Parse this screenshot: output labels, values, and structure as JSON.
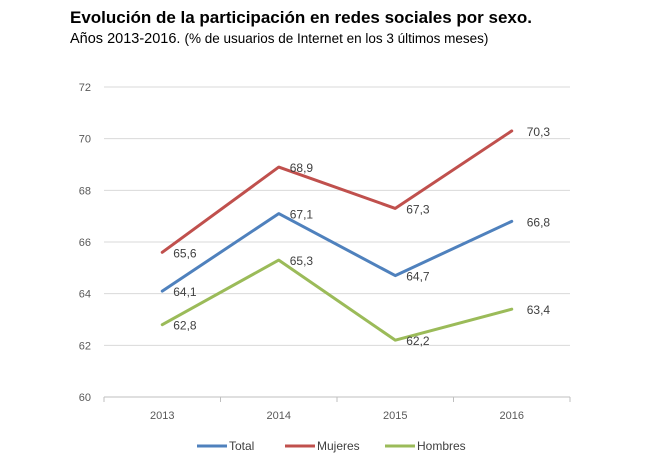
{
  "header": {
    "title": "Evolución de la participación en redes sociales por sexo.",
    "subtitle_main": "Años 2013-2016.",
    "subtitle_note": "(% de usuarios de Internet en los 3 últimos meses)"
  },
  "chart_data": {
    "type": "line",
    "title": "Evolución de la participación en redes sociales por sexo.",
    "subtitle": "Años 2013-2016. (% de usuarios de Internet en los 3 últimos meses)",
    "categories": [
      "2013",
      "2014",
      "2015",
      "2016"
    ],
    "series": [
      {
        "name": "Total",
        "values": [
          64.1,
          67.1,
          64.7,
          66.8
        ],
        "color": "#4f81bd"
      },
      {
        "name": "Mujeres",
        "values": [
          65.6,
          68.9,
          67.3,
          70.3
        ],
        "color": "#c0504d"
      },
      {
        "name": "Hombres",
        "values": [
          62.8,
          65.3,
          62.2,
          63.4
        ],
        "color": "#9bbb59"
      }
    ],
    "ylim": [
      60,
      72
    ],
    "yticks": [
      60,
      62,
      64,
      66,
      68,
      70,
      72
    ],
    "ytick_labels": [
      "60",
      "62",
      "64",
      "66",
      "68",
      "70",
      "72"
    ],
    "grid": true,
    "legend_position": "bottom",
    "data_labels": true,
    "decimal_separator": ","
  }
}
